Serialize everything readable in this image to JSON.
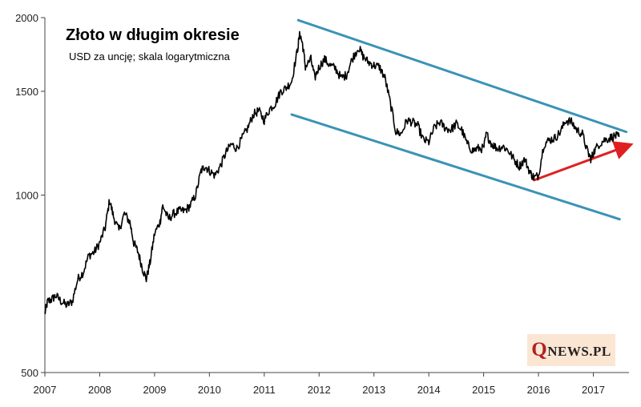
{
  "chart_data": {
    "type": "line",
    "title": "Złoto w długim okresie",
    "subtitle": "USD za uncję; skala logarytmiczna",
    "xlabel": "",
    "ylabel": "",
    "y_scale": "log",
    "ylim": [
      500,
      2000
    ],
    "y_ticks": [
      "500",
      "1000",
      "1500",
      "2000"
    ],
    "x_ticks": [
      "2007",
      "2008",
      "2009",
      "2010",
      "2011",
      "2012",
      "2013",
      "2014",
      "2015",
      "2016",
      "2017"
    ],
    "xlim": [
      2007.0,
      2017.65
    ],
    "grid": false,
    "legend": "none",
    "series": [
      {
        "color": "#000000",
        "x": [
          2007.0,
          2007.05,
          2007.12,
          2007.2,
          2007.3,
          2007.4,
          2007.5,
          2007.6,
          2007.7,
          2007.8,
          2007.9,
          2008.0,
          2008.1,
          2008.18,
          2008.25,
          2008.35,
          2008.45,
          2008.55,
          2008.62,
          2008.7,
          2008.78,
          2008.85,
          2008.92,
          2009.0,
          2009.1,
          2009.15,
          2009.25,
          2009.35,
          2009.45,
          2009.55,
          2009.65,
          2009.75,
          2009.85,
          2009.92,
          2010.0,
          2010.1,
          2010.2,
          2010.3,
          2010.4,
          2010.5,
          2010.6,
          2010.7,
          2010.8,
          2010.9,
          2011.0,
          2011.1,
          2011.2,
          2011.3,
          2011.4,
          2011.5,
          2011.6,
          2011.65,
          2011.7,
          2011.75,
          2011.85,
          2011.92,
          2012.0,
          2012.1,
          2012.2,
          2012.3,
          2012.4,
          2012.5,
          2012.6,
          2012.72,
          2012.8,
          2012.9,
          2013.0,
          2013.1,
          2013.2,
          2013.3,
          2013.4,
          2013.5,
          2013.6,
          2013.7,
          2013.8,
          2013.9,
          2014.0,
          2014.1,
          2014.2,
          2014.3,
          2014.4,
          2014.5,
          2014.6,
          2014.7,
          2014.8,
          2014.9,
          2015.0,
          2015.05,
          2015.15,
          2015.25,
          2015.35,
          2015.45,
          2015.55,
          2015.65,
          2015.75,
          2015.85,
          2015.92,
          2016.0,
          2016.1,
          2016.2,
          2016.3,
          2016.4,
          2016.5,
          2016.6,
          2016.7,
          2016.8,
          2016.9,
          2016.96,
          2017.0,
          2017.1,
          2017.2,
          2017.3,
          2017.4,
          2017.47
        ],
        "y": [
          630,
          660,
          665,
          675,
          660,
          650,
          660,
          720,
          740,
          790,
          800,
          830,
          880,
          980,
          920,
          870,
          930,
          900,
          830,
          800,
          750,
          720,
          770,
          860,
          900,
          960,
          910,
          930,
          940,
          940,
          960,
          1000,
          1100,
          1120,
          1100,
          1080,
          1120,
          1180,
          1220,
          1200,
          1250,
          1300,
          1370,
          1390,
          1340,
          1400,
          1430,
          1500,
          1520,
          1560,
          1750,
          1880,
          1800,
          1650,
          1700,
          1580,
          1650,
          1700,
          1660,
          1640,
          1580,
          1600,
          1700,
          1780,
          1720,
          1680,
          1660,
          1650,
          1580,
          1430,
          1280,
          1270,
          1340,
          1330,
          1310,
          1240,
          1230,
          1300,
          1330,
          1300,
          1290,
          1320,
          1290,
          1220,
          1190,
          1200,
          1200,
          1270,
          1220,
          1200,
          1210,
          1190,
          1150,
          1120,
          1150,
          1090,
          1070,
          1080,
          1220,
          1240,
          1250,
          1280,
          1340,
          1330,
          1290,
          1270,
          1180,
          1150,
          1180,
          1220,
          1240,
          1250,
          1260,
          1255
        ]
      }
    ],
    "annotations": [
      {
        "type": "trendline",
        "color": "#3a93b5",
        "x": [
          2011.62,
          2017.6
        ],
        "y": [
          1980,
          1280
        ]
      },
      {
        "type": "trendline",
        "color": "#3a93b5",
        "x": [
          2011.5,
          2017.48
        ],
        "y": [
          1370,
          910
        ]
      },
      {
        "type": "arrow",
        "color": "#e02020",
        "x": [
          2015.92,
          2017.65
        ],
        "y": [
          1060,
          1215
        ]
      }
    ]
  },
  "logo": {
    "q": "Q",
    "rest": "NEWS.PL"
  }
}
